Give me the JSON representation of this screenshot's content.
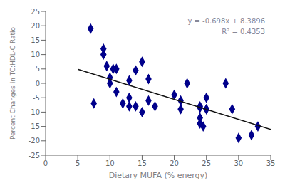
{
  "chart_data": {
    "type": "scatter",
    "xlabel": "Dietary MUFA (% energy)",
    "ylabel": "Percent Changes in TC:HDL-C Ratio",
    "annotations": [
      "y = -0.698x + 8.3896",
      "R² = 0.4353"
    ],
    "annotation_color": "#888899",
    "series": [
      {
        "type": "scatter",
        "marker": "diamond",
        "color": "#00008B",
        "x": [
          7,
          7.5,
          9,
          9,
          9.5,
          10,
          10,
          10.5,
          11,
          11,
          12,
          13,
          13,
          13,
          14,
          14,
          15,
          15,
          16,
          16,
          17,
          20,
          21,
          21,
          22,
          24,
          24,
          24,
          24,
          24.5,
          25,
          25,
          25,
          28,
          29,
          30,
          32,
          33
        ],
        "values": [
          19,
          -7,
          12,
          10,
          6,
          2,
          0,
          5,
          5,
          -3,
          -7,
          1,
          -5,
          -8,
          4.5,
          -8,
          7.5,
          -10,
          1.5,
          -6,
          -8,
          -4,
          -6,
          -9,
          0,
          -8,
          -8.5,
          -12,
          -14,
          -15,
          -5,
          -9,
          -9,
          0,
          -9,
          -19,
          -18,
          -15
        ]
      },
      {
        "type": "line",
        "color": "#111111",
        "x": [
          5,
          35
        ],
        "values": [
          4.8996,
          -16.0404
        ]
      }
    ],
    "xlim": [
      0,
      35
    ],
    "ylim": [
      -25,
      25
    ],
    "xticks": [
      0,
      5,
      10,
      15,
      20,
      25,
      30,
      35
    ],
    "yticks": [
      -25,
      -20,
      -15,
      -10,
      -5,
      0,
      5,
      10,
      15,
      20,
      25
    ],
    "grid": false
  }
}
